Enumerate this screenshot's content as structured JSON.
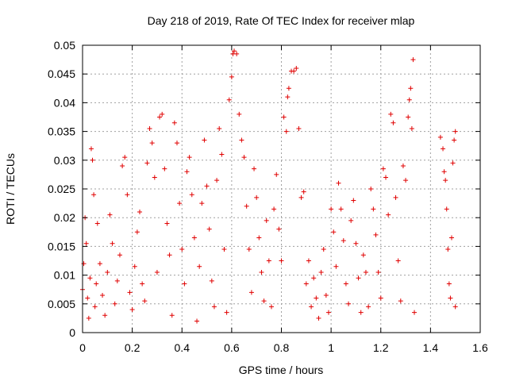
{
  "chart_data": {
    "type": "scatter",
    "title": "Day 218 of 2019, Rate Of TEC Index for receiver mlap",
    "xlabel": "GPS time / hours",
    "ylabel": "ROTI / TECUs",
    "xlim": [
      0,
      1.6
    ],
    "ylim": [
      0,
      0.05
    ],
    "xticks": [
      "0",
      "0.2",
      "0.4",
      "0.6",
      "0.8",
      "1",
      "1.2",
      "1.4",
      "1.6"
    ],
    "xtick_values": [
      0,
      0.2,
      0.4,
      0.6,
      0.8,
      1.0,
      1.2,
      1.4,
      1.6
    ],
    "yticks": [
      "0",
      "0.005",
      "0.01",
      "0.015",
      "0.02",
      "0.025",
      "0.03",
      "0.035",
      "0.04",
      "0.045",
      "0.05"
    ],
    "ytick_values": [
      0,
      0.005,
      0.01,
      0.015,
      0.02,
      0.025,
      0.03,
      0.035,
      0.04,
      0.045,
      0.05
    ],
    "grid": true,
    "marker": "+",
    "series": [
      {
        "name": "ROTI",
        "color": "#e00000",
        "points": [
          [
            0.0,
            0.0075
          ],
          [
            0.005,
            0.012
          ],
          [
            0.01,
            0.02
          ],
          [
            0.015,
            0.0155
          ],
          [
            0.02,
            0.006
          ],
          [
            0.025,
            0.0025
          ],
          [
            0.03,
            0.0095
          ],
          [
            0.035,
            0.032
          ],
          [
            0.04,
            0.03
          ],
          [
            0.045,
            0.024
          ],
          [
            0.05,
            0.0045
          ],
          [
            0.055,
            0.0085
          ],
          [
            0.06,
            0.019
          ],
          [
            0.07,
            0.012
          ],
          [
            0.08,
            0.0065
          ],
          [
            0.09,
            0.003
          ],
          [
            0.1,
            0.0105
          ],
          [
            0.11,
            0.0205
          ],
          [
            0.12,
            0.0155
          ],
          [
            0.13,
            0.005
          ],
          [
            0.14,
            0.009
          ],
          [
            0.15,
            0.0135
          ],
          [
            0.16,
            0.029
          ],
          [
            0.17,
            0.0305
          ],
          [
            0.18,
            0.024
          ],
          [
            0.19,
            0.007
          ],
          [
            0.2,
            0.004
          ],
          [
            0.21,
            0.0115
          ],
          [
            0.22,
            0.0175
          ],
          [
            0.23,
            0.021
          ],
          [
            0.24,
            0.0085
          ],
          [
            0.25,
            0.0055
          ],
          [
            0.26,
            0.0295
          ],
          [
            0.27,
            0.0355
          ],
          [
            0.28,
            0.033
          ],
          [
            0.29,
            0.027
          ],
          [
            0.3,
            0.0105
          ],
          [
            0.31,
            0.0375
          ],
          [
            0.32,
            0.038
          ],
          [
            0.33,
            0.0285
          ],
          [
            0.34,
            0.019
          ],
          [
            0.35,
            0.0135
          ],
          [
            0.36,
            0.003
          ],
          [
            0.37,
            0.0365
          ],
          [
            0.38,
            0.033
          ],
          [
            0.39,
            0.0225
          ],
          [
            0.4,
            0.0145
          ],
          [
            0.41,
            0.0085
          ],
          [
            0.42,
            0.028
          ],
          [
            0.43,
            0.0305
          ],
          [
            0.44,
            0.024
          ],
          [
            0.45,
            0.0165
          ],
          [
            0.46,
            0.002
          ],
          [
            0.47,
            0.0115
          ],
          [
            0.48,
            0.0225
          ],
          [
            0.49,
            0.0335
          ],
          [
            0.5,
            0.0255
          ],
          [
            0.51,
            0.018
          ],
          [
            0.52,
            0.009
          ],
          [
            0.53,
            0.0045
          ],
          [
            0.54,
            0.0265
          ],
          [
            0.55,
            0.0355
          ],
          [
            0.56,
            0.031
          ],
          [
            0.57,
            0.0145
          ],
          [
            0.58,
            0.0035
          ],
          [
            0.59,
            0.0405
          ],
          [
            0.6,
            0.0445
          ],
          [
            0.605,
            0.0485
          ],
          [
            0.61,
            0.049
          ],
          [
            0.62,
            0.0485
          ],
          [
            0.63,
            0.038
          ],
          [
            0.64,
            0.0335
          ],
          [
            0.65,
            0.0305
          ],
          [
            0.66,
            0.022
          ],
          [
            0.67,
            0.0145
          ],
          [
            0.68,
            0.007
          ],
          [
            0.69,
            0.0285
          ],
          [
            0.7,
            0.0235
          ],
          [
            0.71,
            0.0165
          ],
          [
            0.72,
            0.0105
          ],
          [
            0.73,
            0.0055
          ],
          [
            0.74,
            0.0195
          ],
          [
            0.75,
            0.0125
          ],
          [
            0.76,
            0.0045
          ],
          [
            0.77,
            0.0215
          ],
          [
            0.78,
            0.0275
          ],
          [
            0.79,
            0.018
          ],
          [
            0.8,
            0.0125
          ],
          [
            0.81,
            0.0375
          ],
          [
            0.82,
            0.035
          ],
          [
            0.825,
            0.041
          ],
          [
            0.83,
            0.0425
          ],
          [
            0.84,
            0.0455
          ],
          [
            0.85,
            0.0455
          ],
          [
            0.86,
            0.046
          ],
          [
            0.87,
            0.0355
          ],
          [
            0.88,
            0.0235
          ],
          [
            0.89,
            0.0245
          ],
          [
            0.9,
            0.0085
          ],
          [
            0.91,
            0.0125
          ],
          [
            0.92,
            0.0045
          ],
          [
            0.93,
            0.0095
          ],
          [
            0.94,
            0.006
          ],
          [
            0.95,
            0.0025
          ],
          [
            0.96,
            0.0105
          ],
          [
            0.97,
            0.0145
          ],
          [
            0.98,
            0.0065
          ],
          [
            0.99,
            0.0035
          ],
          [
            1.0,
            0.0215
          ],
          [
            1.01,
            0.0175
          ],
          [
            1.02,
            0.0115
          ],
          [
            1.03,
            0.026
          ],
          [
            1.04,
            0.0215
          ],
          [
            1.05,
            0.016
          ],
          [
            1.06,
            0.0085
          ],
          [
            1.07,
            0.005
          ],
          [
            1.08,
            0.0195
          ],
          [
            1.09,
            0.023
          ],
          [
            1.1,
            0.0155
          ],
          [
            1.11,
            0.0095
          ],
          [
            1.12,
            0.0035
          ],
          [
            1.13,
            0.0135
          ],
          [
            1.14,
            0.0105
          ],
          [
            1.15,
            0.0045
          ],
          [
            1.16,
            0.025
          ],
          [
            1.17,
            0.0215
          ],
          [
            1.18,
            0.017
          ],
          [
            1.19,
            0.0105
          ],
          [
            1.2,
            0.006
          ],
          [
            1.21,
            0.0285
          ],
          [
            1.22,
            0.027
          ],
          [
            1.23,
            0.0205
          ],
          [
            1.24,
            0.038
          ],
          [
            1.25,
            0.0365
          ],
          [
            1.26,
            0.0235
          ],
          [
            1.27,
            0.0125
          ],
          [
            1.28,
            0.0055
          ],
          [
            1.29,
            0.029
          ],
          [
            1.3,
            0.0265
          ],
          [
            1.31,
            0.0375
          ],
          [
            1.315,
            0.0405
          ],
          [
            1.32,
            0.0425
          ],
          [
            1.325,
            0.0355
          ],
          [
            1.33,
            0.0475
          ],
          [
            1.335,
            0.0035
          ],
          [
            1.44,
            0.034
          ],
          [
            1.45,
            0.032
          ],
          [
            1.455,
            0.028
          ],
          [
            1.46,
            0.0265
          ],
          [
            1.465,
            0.0215
          ],
          [
            1.47,
            0.0145
          ],
          [
            1.475,
            0.0085
          ],
          [
            1.48,
            0.006
          ],
          [
            1.485,
            0.0165
          ],
          [
            1.49,
            0.0295
          ],
          [
            1.495,
            0.0335
          ],
          [
            1.5,
            0.035
          ],
          [
            1.5,
            0.0045
          ]
        ]
      }
    ]
  }
}
